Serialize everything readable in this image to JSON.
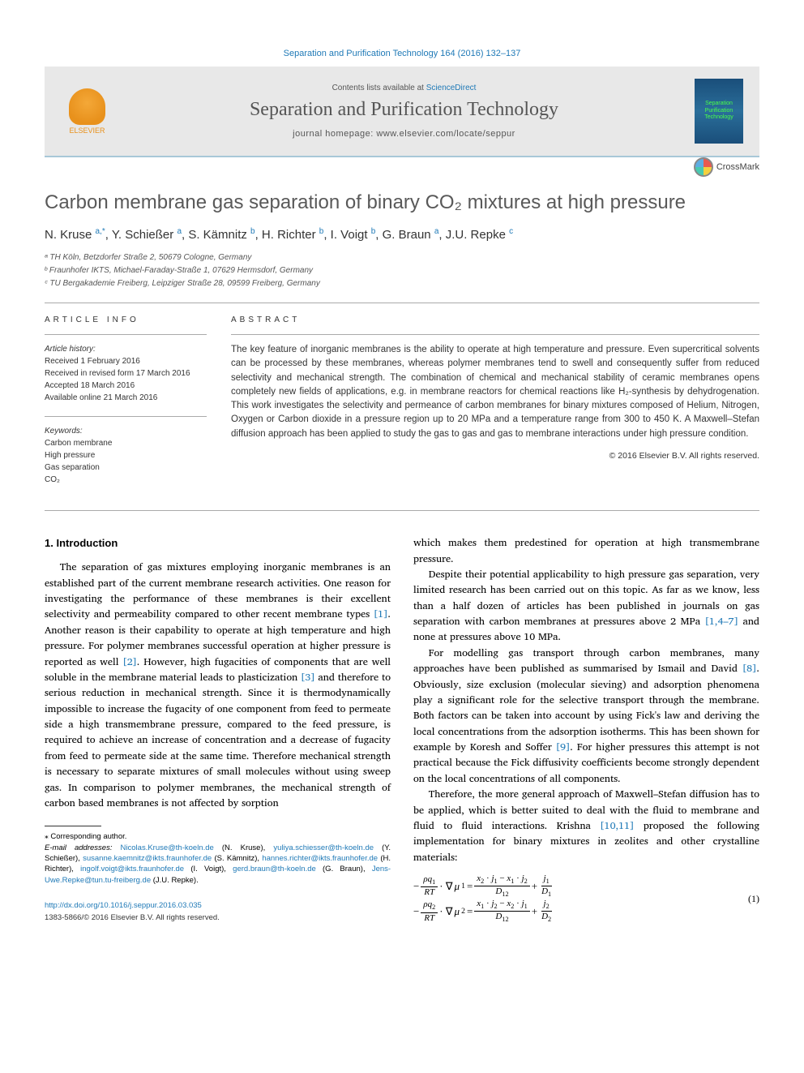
{
  "citation": "Separation and Purification Technology 164 (2016) 132–137",
  "header": {
    "publisher_name": "ELSEVIER",
    "contents_prefix": "Contents lists available at ",
    "contents_link": "ScienceDirect",
    "journal_title": "Separation and Purification Technology",
    "homepage_prefix": "journal homepage: ",
    "homepage_url": "www.elsevier.com/locate/seppur",
    "cover_text": "Separation\nPurification\nTechnology"
  },
  "crossmark_label": "CrossMark",
  "title": "Carbon membrane gas separation of binary CO₂ mixtures at high pressure",
  "authors_html": "N. Kruse <sup>a,*</sup>, Y. Schießer <sup>a</sup>, S. Kämnitz <sup>b</sup>, H. Richter <sup>b</sup>, I. Voigt <sup>b</sup>, G. Braun <sup>a</sup>, J.U. Repke <sup>c</sup>",
  "affiliations": [
    "ᵃ TH Köln, Betzdorfer Straße 2, 50679 Cologne, Germany",
    "ᵇ Fraunhofer IKTS, Michael-Faraday-Straße 1, 07629 Hermsdorf, Germany",
    "ᶜ TU Bergakademie Freiberg, Leipziger Straße 28, 09599 Freiberg, Germany"
  ],
  "info": {
    "label": "ARTICLE INFO",
    "history_label": "Article history:",
    "history": [
      "Received 1 February 2016",
      "Received in revised form 17 March 2016",
      "Accepted 18 March 2016",
      "Available online 21 March 2016"
    ],
    "keywords_label": "Keywords:",
    "keywords": [
      "Carbon membrane",
      "High pressure",
      "Gas separation",
      "CO₂"
    ]
  },
  "abstract": {
    "label": "ABSTRACT",
    "body": "The key feature of inorganic membranes is the ability to operate at high temperature and pressure. Even supercritical solvents can be processed by these membranes, whereas polymer membranes tend to swell and consequently suffer from reduced selectivity and mechanical strength. The combination of chemical and mechanical stability of ceramic membranes opens completely new fields of applications, e.g. in membrane reactors for chemical reactions like H₂-synthesis by dehydrogenation. This work investigates the selectivity and permeance of carbon membranes for binary mixtures composed of Helium, Nitrogen, Oxygen or Carbon dioxide in a pressure region up to 20 MPa and a temperature range from 300 to 450 K. A Maxwell–Stefan diffusion approach has been applied to study the gas to gas and gas to membrane interactions under high pressure condition.",
    "copyright": "© 2016 Elsevier B.V. All rights reserved."
  },
  "body": {
    "section_heading": "1. Introduction",
    "col1_p1": "The separation of gas mixtures employing inorganic membranes is an established part of the current membrane research activities. One reason for investigating the performance of these membranes is their excellent selectivity and permeability compared to other recent membrane types [1]. Another reason is their capability to operate at high temperature and high pressure. For polymer membranes successful operation at higher pressure is reported as well [2]. However, high fugacities of components that are well soluble in the membrane material leads to plasticization [3] and therefore to serious reduction in mechanical strength. Since it is thermodynamically impossible to increase the fugacity of one component from feed to permeate side a high transmembrane pressure, compared to the feed pressure, is required to achieve an increase of concentration and a decrease of fugacity from feed to permeate side at the same time. Therefore mechanical strength is necessary to separate mixtures of small molecules without using sweep gas. In comparison to polymer membranes, the mechanical strength of carbon based membranes is not affected by sorption",
    "col2_p1": "which makes them predestined for operation at high transmembrane pressure.",
    "col2_p2": "Despite their potential applicability to high pressure gas separation, very limited research has been carried out on this topic. As far as we know, less than a half dozen of articles has been published in journals on gas separation with carbon membranes at pressures above 2 MPa [1,4–7] and none at pressures above 10 MPa.",
    "col2_p3": "For modelling gas transport through carbon membranes, many approaches have been published as summarised by Ismail and David [8]. Obviously, size exclusion (molecular sieving) and adsorption phenomena play a significant role for the selective transport through the membrane. Both factors can be taken into account by using Fick's law and deriving the local concentrations from the adsorption isotherms. This has been shown for example by Koresh and Soffer [9]. For higher pressures this attempt is not practical because the Fick diffusivity coefficients become strongly dependent on the local concentrations of all components.",
    "col2_p4": "Therefore, the more general approach of Maxwell–Stefan diffusion has to be applied, which is better suited to deal with the fluid to membrane and fluid to fluid interactions. Krishna [10,11] proposed the following implementation for binary mixtures in zeolites and other crystalline materials:"
  },
  "equation": {
    "number": "(1)"
  },
  "footnotes": {
    "corr_label": "⁎ Corresponding author.",
    "email_label": "E-mail addresses:",
    "emails": [
      {
        "addr": "Nicolas.Kruse@th-koeln.de",
        "name": "(N. Kruse)"
      },
      {
        "addr": "yuliya.schiesser@th-koeln.de",
        "name": "(Y. Schießer)"
      },
      {
        "addr": "susanne.kaemnitz@ikts.fraunhofer.de",
        "name": "(S. Kämnitz)"
      },
      {
        "addr": "hannes.richter@ikts.fraunhofer.de",
        "name": "(H. Richter)"
      },
      {
        "addr": "ingolf.voigt@ikts.fraunhofer.de",
        "name": "(I. Voigt)"
      },
      {
        "addr": "gerd.braun@th-koeln.de",
        "name": "(G. Braun)"
      },
      {
        "addr": "Jens-Uwe.Repke@tun.tu-freiberg.de",
        "name": "(J.U. Repke)"
      }
    ]
  },
  "doi": {
    "url": "http://dx.doi.org/10.1016/j.seppur.2016.03.035",
    "issn": "1383-5866/© 2016 Elsevier B.V. All rights reserved."
  },
  "colors": {
    "link": "#207ab7",
    "heading": "#595959",
    "band_bg": "#e8e8e8",
    "orange": "#e8911c"
  }
}
